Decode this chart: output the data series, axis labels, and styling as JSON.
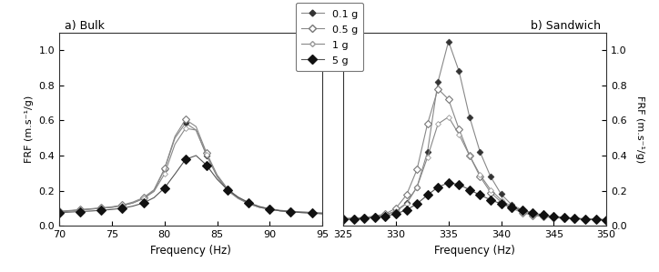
{
  "title_a": "a) Bulk",
  "title_b": "b) Sandwich",
  "xlabel": "Frequency (Hz)",
  "ylabel_left": "FRF (m.s⁻¹/g)",
  "ylabel_right": "FRF (m.s⁻¹/g)",
  "legend_labels": [
    "0.1 g",
    "0.5 g",
    "1 g",
    "5 g"
  ],
  "bulk": {
    "xlim": [
      70,
      95
    ],
    "ylim": [
      0.0,
      1.1
    ],
    "yticks": [
      0.0,
      0.2,
      0.4,
      0.6,
      0.8,
      1.0
    ],
    "xticks": [
      70,
      75,
      80,
      85,
      90,
      95
    ],
    "freq": [
      70,
      71,
      72,
      73,
      74,
      75,
      76,
      77,
      78,
      79,
      80,
      81,
      82,
      83,
      84,
      85,
      86,
      87,
      88,
      89,
      90,
      91,
      92,
      93,
      94,
      95
    ],
    "y_01g": [
      0.08,
      0.085,
      0.09,
      0.095,
      0.1,
      0.105,
      0.115,
      0.13,
      0.155,
      0.2,
      0.32,
      0.5,
      0.585,
      0.545,
      0.4,
      0.28,
      0.2,
      0.155,
      0.125,
      0.105,
      0.095,
      0.085,
      0.082,
      0.078,
      0.075,
      0.072
    ],
    "y_05g": [
      0.082,
      0.087,
      0.092,
      0.097,
      0.102,
      0.108,
      0.118,
      0.135,
      0.16,
      0.205,
      0.325,
      0.51,
      0.605,
      0.565,
      0.415,
      0.29,
      0.21,
      0.162,
      0.13,
      0.108,
      0.097,
      0.088,
      0.083,
      0.079,
      0.076,
      0.073
    ],
    "y_1g": [
      0.08,
      0.085,
      0.09,
      0.095,
      0.1,
      0.105,
      0.115,
      0.13,
      0.155,
      0.195,
      0.295,
      0.465,
      0.555,
      0.545,
      0.405,
      0.285,
      0.205,
      0.158,
      0.127,
      0.105,
      0.093,
      0.085,
      0.08,
      0.076,
      0.073,
      0.07
    ],
    "y_5g": [
      0.075,
      0.078,
      0.081,
      0.084,
      0.088,
      0.093,
      0.1,
      0.112,
      0.13,
      0.16,
      0.215,
      0.295,
      0.378,
      0.4,
      0.345,
      0.265,
      0.205,
      0.163,
      0.132,
      0.11,
      0.095,
      0.085,
      0.08,
      0.075,
      0.072,
      0.068
    ]
  },
  "sandwich": {
    "xlim": [
      325,
      350
    ],
    "ylim": [
      0.0,
      1.1
    ],
    "yticks": [
      0.0,
      0.2,
      0.4,
      0.6,
      0.8,
      1.0
    ],
    "xticks": [
      325,
      330,
      335,
      340,
      345,
      350
    ],
    "freq": [
      325,
      326,
      327,
      328,
      329,
      330,
      331,
      332,
      333,
      334,
      335,
      336,
      337,
      338,
      339,
      340,
      341,
      342,
      343,
      344,
      345,
      346,
      347,
      348,
      349,
      350
    ],
    "y_01g": [
      0.04,
      0.043,
      0.047,
      0.053,
      0.062,
      0.085,
      0.13,
      0.22,
      0.42,
      0.82,
      1.05,
      0.88,
      0.62,
      0.42,
      0.28,
      0.18,
      0.12,
      0.09,
      0.07,
      0.06,
      0.052,
      0.047,
      0.043,
      0.04,
      0.038,
      0.036
    ],
    "y_05g": [
      0.04,
      0.043,
      0.047,
      0.055,
      0.068,
      0.1,
      0.175,
      0.32,
      0.58,
      0.78,
      0.72,
      0.55,
      0.4,
      0.28,
      0.19,
      0.135,
      0.1,
      0.075,
      0.06,
      0.052,
      0.046,
      0.042,
      0.039,
      0.037,
      0.035,
      0.034
    ],
    "y_1g": [
      0.04,
      0.042,
      0.046,
      0.052,
      0.062,
      0.082,
      0.125,
      0.22,
      0.39,
      0.58,
      0.62,
      0.52,
      0.4,
      0.29,
      0.205,
      0.148,
      0.108,
      0.082,
      0.065,
      0.055,
      0.048,
      0.043,
      0.04,
      0.037,
      0.035,
      0.033
    ],
    "y_5g": [
      0.035,
      0.038,
      0.042,
      0.047,
      0.055,
      0.068,
      0.09,
      0.125,
      0.175,
      0.22,
      0.245,
      0.235,
      0.205,
      0.175,
      0.148,
      0.125,
      0.105,
      0.088,
      0.073,
      0.062,
      0.053,
      0.047,
      0.042,
      0.038,
      0.035,
      0.033
    ]
  },
  "line_color": "#888888",
  "color_dark": "#333333",
  "color_black": "#111111"
}
